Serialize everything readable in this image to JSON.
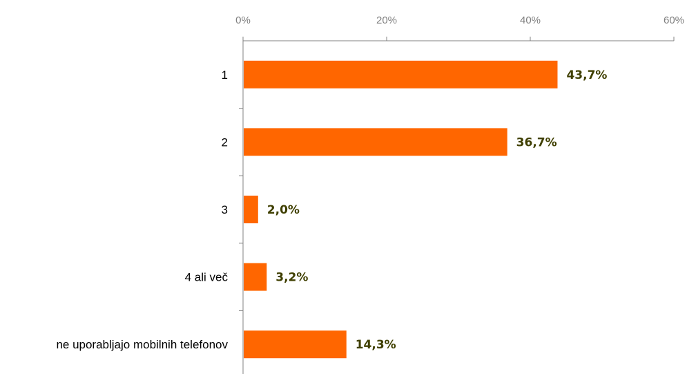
{
  "chart_data": {
    "type": "bar",
    "orientation": "horizontal",
    "title": "",
    "xlabel": "",
    "ylabel": "",
    "xlim": [
      0,
      60
    ],
    "x_ticks": [
      "0%",
      "20%",
      "40%",
      "60%"
    ],
    "axis_position": "top",
    "grid": false,
    "legend": "none",
    "categories": [
      "1",
      "2",
      "3",
      "4 ali več",
      "ne uporabljajo mobilnih telefonov"
    ],
    "values": [
      43.7,
      36.7,
      2.0,
      3.2,
      14.3
    ],
    "data_labels": [
      "43,7%",
      "36,7%",
      "2,0%",
      "3,2%",
      "14,3%"
    ],
    "colors": {
      "bar": "#ff6600",
      "data_label": "#3f3f00",
      "axis": "#808080",
      "tick_text": "#7f7f7f",
      "category_text": "#000000"
    }
  }
}
